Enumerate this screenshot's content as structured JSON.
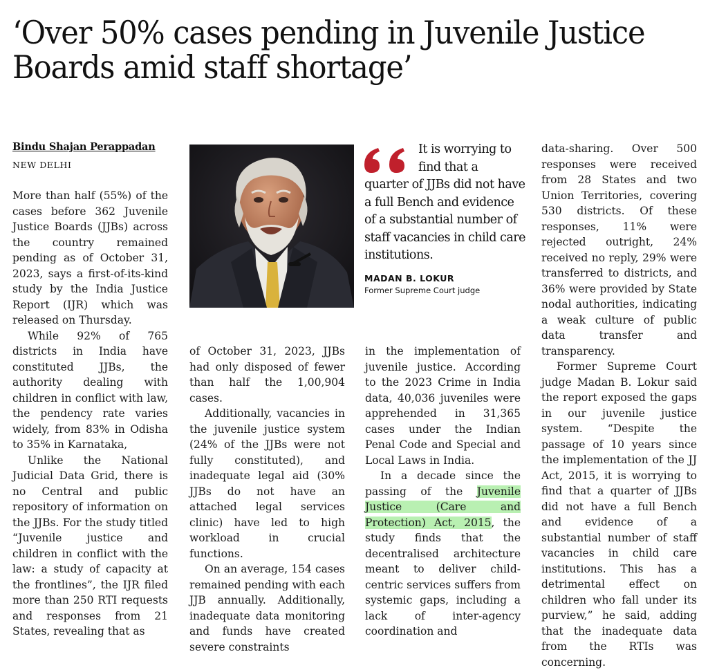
{
  "article": {
    "headline": "‘Over 50% cases pending in Juvenile Justice Boards amid staff shortage’",
    "byline": "Bindu Shajan Perappadan",
    "dateline": "NEW DELHI",
    "col1": {
      "p1": "More than half (55%) of the cases before 362 Juvenile Justice Boards (JJBs) across the country remained pending as of October 31, 2023, says a first-of-its-kind study by the India Justice Report (IJR) which was released on Thursday.",
      "p2": "While 92% of 765 districts in India have constituted JJBs, the authority dealing with children in conflict with law, the pendency rate varies widely, from 83% in Odisha to 35% in Karnataka,",
      "p3": "Unlike the National Judicial Data Grid, there is no Central and public repository of information on the JJBs. For the study titled “Juvenile justice and children in conflict with the law: a study of capacity at the frontlines”, the IJR filed more than 250 RTI requests and responses from 21 States, revealing that as"
    },
    "col2": {
      "p1": "of October 31, 2023, JJBs had only disposed of fewer than half the 1,00,904 cases.",
      "p2": "Additionally, vacancies in the juvenile justice system (24% of the JJBs were not fully constituted), and inadequate legal aid (30% JJBs do not have an attached legal services clinic) have led to high workload in crucial functions.",
      "p3": "On an average, 154 cases remained pending with each JJB annually. Additionally, inadequate data monitoring and funds have created severe constraints"
    },
    "col3": {
      "p1": "in the implementation of juvenile justice. According to the 2023 Crime in India data, 40,036 juveniles were apprehended in 31,365 cases under the Indian Penal Code and Special and Local Laws in India.",
      "p2_before": "In a decade since the passing of the ",
      "p2_highlight": "Juvenile Justice (Care and Protection) Act, 2015",
      "p2_after": ", the study finds that the decentralised architecture meant to deliver child-centric services suffers from systemic gaps, including a lack of inter-agency coordination and"
    },
    "col4": {
      "p1": "data-sharing. Over 500 responses were received from 28 States and two Union Territories, covering 530 districts. Of these responses, 11% were rejected outright, 24% received no reply, 29% were transferred to districts, and 36% were provided by State nodal authorities, indicating a weak culture of public data transfer and transparency.",
      "p2": "Former Supreme Court judge Madan B. Lokur said the report exposed the gaps in our juvenile justice system. “Despite the passage of 10 years since the implementation of the JJ Act, 2015, it is worrying to find that a quarter of JJBs did not have a full Bench and evidence of a substantial number of staff vacancies in child care institutions. This has a detrimental effect on children who fall under its purview,” he said, adding that the inadequate data from the RTIs was concerning."
    },
    "pullquote": {
      "line1": "It is worrying to",
      "line2": "find that a",
      "rest": "quarter of JJBs did not have a full Bench and evidence of a substantial number of staff vacancies in child care institutions.",
      "name": "MADAN B. LOKUR",
      "role": "Former Supreme Court judge"
    },
    "colors": {
      "quote_mark": "#c0202c",
      "highlight": "#b9f0b2",
      "photo_bg": "#1b1a1e"
    },
    "icons": {
      "quote_mark": "quote-mark-icon"
    }
  }
}
